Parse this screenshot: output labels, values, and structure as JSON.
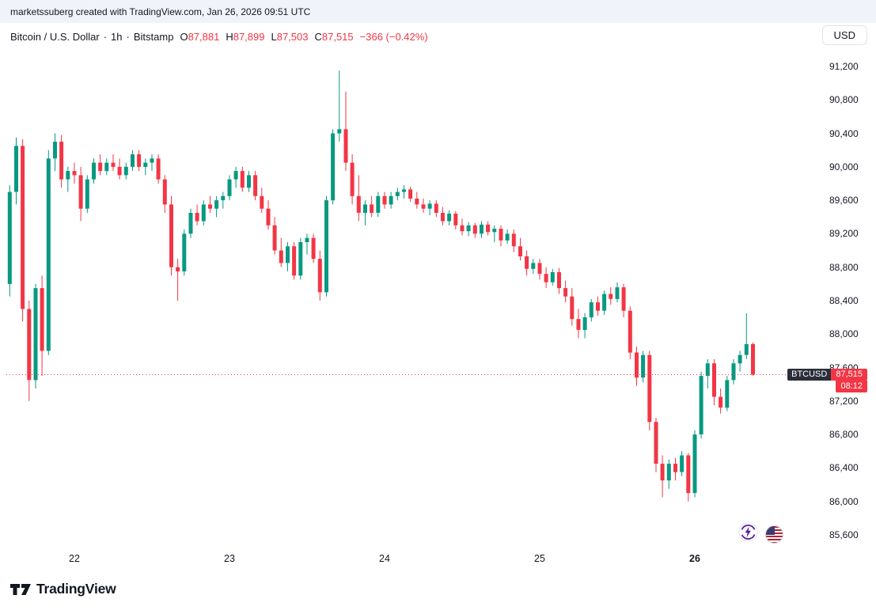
{
  "attribution": "marketssuberg created with TradingView.com, Jan 26, 2026 09:51 UTC",
  "header": {
    "symbol_title": "Bitcoin / U.S. Dollar",
    "separator": "·",
    "interval": "1h",
    "exchange": "Bitstamp",
    "ohlc": {
      "o_label": "O",
      "o": "87,881",
      "h_label": "H",
      "h": "87,899",
      "l_label": "L",
      "l": "87,503",
      "c_label": "C",
      "c": "87,515",
      "change": "−366 (−0.42%)"
    },
    "currency_button": "USD"
  },
  "price_scale": {
    "ticks": [
      {
        "label": "91,200",
        "value": 91200
      },
      {
        "label": "90,800",
        "value": 90800
      },
      {
        "label": "90,400",
        "value": 90400
      },
      {
        "label": "90,000",
        "value": 90000
      },
      {
        "label": "89,600",
        "value": 89600
      },
      {
        "label": "89,200",
        "value": 89200
      },
      {
        "label": "88,800",
        "value": 88800
      },
      {
        "label": "88,400",
        "value": 88400
      },
      {
        "label": "88,000",
        "value": 88000
      },
      {
        "label": "87,600",
        "value": 87600
      },
      {
        "label": "87,200",
        "value": 87200
      },
      {
        "label": "86,800",
        "value": 86800
      },
      {
        "label": "86,400",
        "value": 86400
      },
      {
        "label": "86,000",
        "value": 86000
      },
      {
        "label": "85,600",
        "value": 85600
      }
    ],
    "last_price": {
      "symbol": "BTCUSD",
      "price": "87,515",
      "value": 87515,
      "countdown": "08:12"
    }
  },
  "time_scale": {
    "labels": [
      {
        "text": "22",
        "candle_index": 10,
        "emphasis": false
      },
      {
        "text": "23",
        "candle_index": 34,
        "emphasis": false
      },
      {
        "text": "24",
        "candle_index": 58,
        "emphasis": false
      },
      {
        "text": "25",
        "candle_index": 82,
        "emphasis": false
      },
      {
        "text": "26",
        "candle_index": 106,
        "emphasis": true
      }
    ]
  },
  "footer": {
    "logo_text": "TradingView"
  },
  "icons": {
    "event_icons": [
      "lightning-refresh-icon",
      "us-flag-icon"
    ]
  },
  "colors": {
    "up": "#089981",
    "down": "#F23645",
    "text": "#131722",
    "muted": "#787B86",
    "topbar_bg": "#F0F3FA",
    "badge_dark": "#2A2E39"
  },
  "chart_data": {
    "type": "candlestick",
    "title": "Bitcoin / U.S. Dollar",
    "symbol": "BTCUSD",
    "exchange": "Bitstamp",
    "interval": "1h",
    "start_time": "2026-01-21 14:00 UTC",
    "end_time": "2026-01-26 09:00 UTC",
    "grid": false,
    "ylim": [
      85467,
      91427
    ],
    "y_tick_step": 400,
    "last_price": 87515,
    "candles": [
      [
        88600,
        89780,
        88450,
        89700
      ],
      [
        89700,
        90350,
        89550,
        90250
      ],
      [
        90250,
        90330,
        88150,
        88300
      ],
      [
        88300,
        88400,
        87200,
        87450
      ],
      [
        87450,
        88600,
        87350,
        88550
      ],
      [
        88550,
        88700,
        87500,
        87800
      ],
      [
        87800,
        90200,
        87750,
        90100
      ],
      [
        90100,
        90400,
        89950,
        90300
      ],
      [
        90300,
        90380,
        89750,
        89850
      ],
      [
        89850,
        90000,
        89700,
        89950
      ],
      [
        89950,
        90050,
        89800,
        89900
      ],
      [
        89900,
        90000,
        89350,
        89500
      ],
      [
        89500,
        89900,
        89450,
        89850
      ],
      [
        89850,
        90100,
        89800,
        90050
      ],
      [
        90050,
        90150,
        89900,
        89950
      ],
      [
        89950,
        90100,
        89900,
        90050
      ],
      [
        90050,
        90150,
        89950,
        90000
      ],
      [
        90000,
        90100,
        89850,
        89900
      ],
      [
        89900,
        90050,
        89850,
        90000
      ],
      [
        90000,
        90200,
        89950,
        90150
      ],
      [
        90150,
        90200,
        89950,
        90000
      ],
      [
        90000,
        90100,
        89900,
        90050
      ],
      [
        90050,
        90150,
        89950,
        90100
      ],
      [
        90100,
        90150,
        89800,
        89850
      ],
      [
        89850,
        89900,
        89450,
        89550
      ],
      [
        89550,
        89650,
        88700,
        88800
      ],
      [
        88800,
        88900,
        88400,
        88750
      ],
      [
        88750,
        89250,
        88700,
        89200
      ],
      [
        89200,
        89500,
        89150,
        89450
      ],
      [
        89450,
        89550,
        89300,
        89350
      ],
      [
        89350,
        89600,
        89300,
        89550
      ],
      [
        89550,
        89650,
        89450,
        89500
      ],
      [
        89500,
        89650,
        89400,
        89600
      ],
      [
        89600,
        89700,
        89500,
        89650
      ],
      [
        89650,
        89900,
        89600,
        89850
      ],
      [
        89850,
        90000,
        89750,
        89950
      ],
      [
        89950,
        90000,
        89700,
        89750
      ],
      [
        89750,
        89950,
        89700,
        89900
      ],
      [
        89900,
        89950,
        89600,
        89650
      ],
      [
        89650,
        89750,
        89450,
        89500
      ],
      [
        89500,
        89600,
        89250,
        89300
      ],
      [
        89300,
        89400,
        88950,
        89000
      ],
      [
        89000,
        89150,
        88800,
        88850
      ],
      [
        88850,
        89100,
        88750,
        89050
      ],
      [
        89050,
        89100,
        88650,
        88700
      ],
      [
        88700,
        89150,
        88650,
        89100
      ],
      [
        89100,
        89200,
        88950,
        89150
      ],
      [
        89150,
        89200,
        88850,
        88900
      ],
      [
        88900,
        89000,
        88400,
        88500
      ],
      [
        88500,
        89650,
        88450,
        89600
      ],
      [
        89600,
        90450,
        89550,
        90400
      ],
      [
        90400,
        91150,
        90300,
        90450
      ],
      [
        90450,
        90900,
        89950,
        90050
      ],
      [
        90050,
        90150,
        89550,
        89650
      ],
      [
        89650,
        89900,
        89350,
        89450
      ],
      [
        89450,
        89600,
        89300,
        89550
      ],
      [
        89550,
        89650,
        89400,
        89450
      ],
      [
        89450,
        89700,
        89400,
        89650
      ],
      [
        89650,
        89700,
        89500,
        89550
      ],
      [
        89550,
        89700,
        89500,
        89650
      ],
      [
        89650,
        89750,
        89600,
        89700
      ],
      [
        89700,
        89780,
        89620,
        89730
      ],
      [
        89730,
        89760,
        89580,
        89620
      ],
      [
        89620,
        89700,
        89500,
        89550
      ],
      [
        89550,
        89620,
        89450,
        89500
      ],
      [
        89500,
        89600,
        89420,
        89560
      ],
      [
        89560,
        89600,
        89400,
        89450
      ],
      [
        89450,
        89520,
        89300,
        89350
      ],
      [
        89350,
        89480,
        89300,
        89440
      ],
      [
        89440,
        89470,
        89250,
        89300
      ],
      [
        89300,
        89380,
        89180,
        89230
      ],
      [
        89230,
        89340,
        89170,
        89300
      ],
      [
        89300,
        89330,
        89150,
        89200
      ],
      [
        89200,
        89350,
        89150,
        89310
      ],
      [
        89310,
        89350,
        89180,
        89220
      ],
      [
        89220,
        89300,
        89100,
        89260
      ],
      [
        89260,
        89300,
        89050,
        89120
      ],
      [
        89120,
        89250,
        89080,
        89200
      ],
      [
        89200,
        89250,
        88980,
        89050
      ],
      [
        89050,
        89150,
        88880,
        88930
      ],
      [
        88930,
        89000,
        88700,
        88780
      ],
      [
        88780,
        88900,
        88720,
        88850
      ],
      [
        88850,
        88900,
        88650,
        88720
      ],
      [
        88720,
        88800,
        88550,
        88620
      ],
      [
        88620,
        88780,
        88580,
        88740
      ],
      [
        88740,
        88790,
        88480,
        88550
      ],
      [
        88550,
        88640,
        88380,
        88450
      ],
      [
        88450,
        88550,
        88100,
        88180
      ],
      [
        88180,
        88300,
        87950,
        88050
      ],
      [
        88050,
        88250,
        87950,
        88200
      ],
      [
        88200,
        88420,
        88150,
        88380
      ],
      [
        88380,
        88450,
        88220,
        88280
      ],
      [
        88280,
        88520,
        88230,
        88480
      ],
      [
        88480,
        88560,
        88350,
        88420
      ],
      [
        88420,
        88620,
        88380,
        88560
      ],
      [
        88560,
        88600,
        88200,
        88280
      ],
      [
        88280,
        88330,
        87700,
        87780
      ],
      [
        87780,
        87850,
        87380,
        87480
      ],
      [
        87480,
        87800,
        87420,
        87750
      ],
      [
        87750,
        87800,
        86850,
        86950
      ],
      [
        86950,
        87000,
        86350,
        86450
      ],
      [
        86450,
        86550,
        86050,
        86250
      ],
      [
        86250,
        86500,
        86150,
        86450
      ],
      [
        86450,
        86520,
        86250,
        86350
      ],
      [
        86350,
        86600,
        86300,
        86550
      ],
      [
        86550,
        86580,
        86000,
        86100
      ],
      [
        86100,
        86850,
        86050,
        86800
      ],
      [
        86800,
        87550,
        86750,
        87500
      ],
      [
        87500,
        87700,
        87350,
        87650
      ],
      [
        87650,
        87700,
        87150,
        87250
      ],
      [
        87250,
        87350,
        87050,
        87120
      ],
      [
        87120,
        87500,
        87080,
        87450
      ],
      [
        87450,
        87700,
        87400,
        87650
      ],
      [
        87650,
        87800,
        87550,
        87750
      ],
      [
        87750,
        88250,
        87700,
        87880
      ],
      [
        87881,
        87899,
        87503,
        87515
      ]
    ]
  }
}
